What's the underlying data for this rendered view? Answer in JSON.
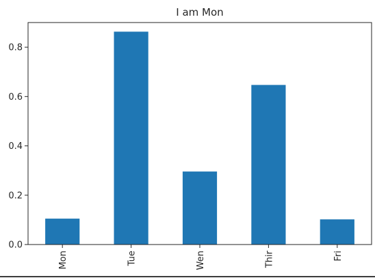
{
  "chart_data": {
    "type": "bar",
    "title": "I am Mon",
    "categories": [
      "Mon",
      "Tue",
      "Wen",
      "Thir",
      "Fri"
    ],
    "values": [
      0.105,
      0.863,
      0.296,
      0.647,
      0.102
    ],
    "ylim": [
      0,
      0.9
    ],
    "yticks": [
      0.0,
      0.2,
      0.4,
      0.6,
      0.8
    ],
    "ytick_labels": [
      "0.0",
      "0.2",
      "0.4",
      "0.6",
      "0.8"
    ],
    "bar_color": "#1f77b4",
    "grid": false,
    "legend": "none"
  }
}
